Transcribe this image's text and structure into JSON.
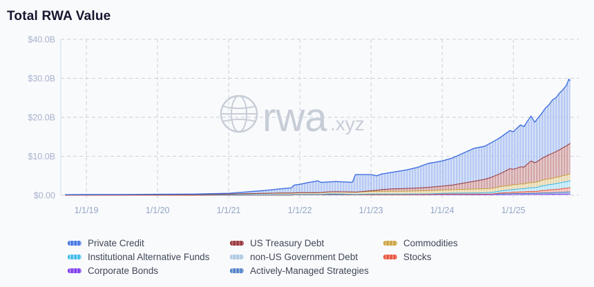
{
  "page": {
    "title": "Total RWA Value"
  },
  "watermark": {
    "brand": "rwa",
    "suffix": ".xyz",
    "icon": "globe-icon",
    "color": "#c7cdd7"
  },
  "chart_data": {
    "type": "area",
    "stacked": true,
    "title": "Total RWA Value",
    "xlabel": "",
    "ylabel": "",
    "grid": "dashed",
    "legend_position": "bottom",
    "xlim": [
      2018.64,
      2025.92
    ],
    "ylim": [
      0,
      40
    ],
    "y_ticks": [
      {
        "v": 0,
        "label": "$0.00"
      },
      {
        "v": 10,
        "label": "$10.0B"
      },
      {
        "v": 20,
        "label": "$20.0B"
      },
      {
        "v": 30,
        "label": "$30.0B"
      },
      {
        "v": 40,
        "label": "$40.0B"
      }
    ],
    "x_ticks": [
      {
        "t": 2019,
        "label": "1/1/19"
      },
      {
        "t": 2020,
        "label": "1/1/20"
      },
      {
        "t": 2021,
        "label": "1/1/21"
      },
      {
        "t": 2022,
        "label": "1/1/22"
      },
      {
        "t": 2023,
        "label": "1/1/23"
      },
      {
        "t": 2024,
        "label": "1/1/24"
      },
      {
        "t": 2025,
        "label": "1/1/25"
      }
    ],
    "x": [
      2018.7,
      2019.0,
      2019.5,
      2020.0,
      2020.5,
      2021.0,
      2021.25,
      2021.5,
      2021.75,
      2021.88,
      2021.92,
      2022.0,
      2022.1,
      2022.2,
      2022.25,
      2022.3,
      2022.4,
      2022.5,
      2022.6,
      2022.7,
      2022.74,
      2022.78,
      2023.0,
      2023.08,
      2023.15,
      2023.3,
      2023.5,
      2023.65,
      2023.8,
      2024.0,
      2024.15,
      2024.3,
      2024.45,
      2024.6,
      2024.7,
      2024.8,
      2024.9,
      2024.95,
      2025.0,
      2025.05,
      2025.1,
      2025.15,
      2025.2,
      2025.25,
      2025.3,
      2025.35,
      2025.4,
      2025.45,
      2025.5,
      2025.55,
      2025.6,
      2025.65,
      2025.7,
      2025.75,
      2025.78,
      2025.8
    ],
    "value_unit": "USD billions",
    "series": [
      {
        "name": "Corporate Bonds",
        "stroke": "#7c3aed",
        "fill": "#a97df2",
        "values": [
          0,
          0,
          0,
          0,
          0,
          0.05,
          0.05,
          0.05,
          0.06,
          0.06,
          0.08,
          0.1,
          0.1,
          0.1,
          0.1,
          0.1,
          0.1,
          0.1,
          0.1,
          0.1,
          0.1,
          0.1,
          0.1,
          0.1,
          0.1,
          0.1,
          0.1,
          0.12,
          0.12,
          0.15,
          0.15,
          0.15,
          0.15,
          0.15,
          0.16,
          0.18,
          0.2,
          0.2,
          0.22,
          0.22,
          0.22,
          0.22,
          0.24,
          0.24,
          0.24,
          0.25,
          0.25,
          0.25,
          0.26,
          0.26,
          0.28,
          0.28,
          0.28,
          0.3,
          0.3,
          0.3
        ]
      },
      {
        "name": "non-US Government Debt",
        "stroke": "#aac6de",
        "fill": "#cadded",
        "values": [
          0,
          0,
          0,
          0,
          0,
          0,
          0,
          0,
          0,
          0,
          0,
          0,
          0,
          0,
          0,
          0,
          0,
          0,
          0,
          0,
          0,
          0,
          0.05,
          0.05,
          0.05,
          0.05,
          0.05,
          0.06,
          0.06,
          0.08,
          0.08,
          0.08,
          0.09,
          0.09,
          0.1,
          0.1,
          0.1,
          0.11,
          0.12,
          0.12,
          0.13,
          0.13,
          0.14,
          0.14,
          0.14,
          0.15,
          0.15,
          0.16,
          0.17,
          0.18,
          0.19,
          0.2,
          0.22,
          0.23,
          0.24,
          0.25
        ]
      },
      {
        "name": "Actively-Managed Strategies",
        "stroke": "#4a7cc7",
        "fill": "#8fb0da",
        "values": [
          0,
          0,
          0,
          0,
          0,
          0,
          0,
          0,
          0,
          0,
          0,
          0,
          0,
          0,
          0,
          0,
          0,
          0,
          0,
          0,
          0,
          0,
          0,
          0,
          0,
          0,
          0,
          0,
          0,
          0.05,
          0.05,
          0.05,
          0.05,
          0.05,
          0.06,
          0.06,
          0.07,
          0.08,
          0.1,
          0.1,
          0.11,
          0.11,
          0.12,
          0.13,
          0.13,
          0.14,
          0.2,
          0.2,
          0.21,
          0.22,
          0.24,
          0.25,
          0.26,
          0.28,
          0.29,
          0.3
        ]
      },
      {
        "name": "Stocks",
        "stroke": "#e84f38",
        "fill": "#f08a77",
        "values": [
          0,
          0,
          0,
          0,
          0,
          0,
          0,
          0,
          0,
          0,
          0,
          0,
          0,
          0,
          0,
          0,
          0.15,
          0.15,
          0.1,
          0.05,
          0.05,
          0,
          0,
          0,
          0,
          0,
          0,
          0,
          0,
          0,
          0,
          0,
          0,
          0,
          0,
          0.2,
          0.3,
          0.3,
          0.35,
          0.35,
          0.4,
          0.4,
          0.45,
          0.45,
          0.45,
          0.5,
          0.6,
          0.65,
          0.7,
          0.75,
          0.8,
          0.85,
          0.95,
          1.0,
          1.05,
          1.1
        ]
      },
      {
        "name": "Institutional Alternative Funds",
        "stroke": "#38b8e8",
        "fill": "#8fd8f4",
        "values": [
          0.08,
          0.08,
          0.08,
          0.08,
          0.08,
          0.1,
          0.1,
          0.1,
          0.1,
          0.1,
          0.1,
          0.1,
          0.1,
          0.1,
          0.1,
          0.1,
          0.1,
          0.1,
          0.1,
          0.1,
          0.1,
          0.1,
          0.15,
          0.15,
          0.15,
          0.15,
          0.15,
          0.15,
          0.18,
          0.2,
          0.25,
          0.28,
          0.3,
          0.35,
          0.4,
          0.5,
          0.6,
          0.65,
          0.7,
          0.75,
          0.8,
          0.8,
          0.9,
          0.95,
          1.0,
          1.05,
          1.2,
          1.25,
          1.35,
          1.4,
          1.5,
          1.55,
          1.65,
          1.7,
          1.75,
          1.8
        ]
      },
      {
        "name": "Commodities",
        "stroke": "#c79f3e",
        "fill": "#ddc078",
        "values": [
          0,
          0.02,
          0.03,
          0.05,
          0.07,
          0.15,
          0.25,
          0.35,
          0.4,
          0.42,
          0.43,
          0.45,
          0.45,
          0.47,
          0.48,
          0.5,
          0.52,
          0.55,
          0.58,
          0.6,
          0.6,
          0.6,
          0.7,
          0.7,
          0.7,
          0.72,
          0.75,
          0.78,
          0.8,
          0.85,
          0.9,
          0.95,
          1.0,
          1.05,
          1.05,
          1.1,
          1.15,
          1.15,
          1.2,
          1.2,
          1.25,
          1.25,
          1.3,
          1.3,
          1.35,
          1.4,
          1.45,
          1.5,
          1.5,
          1.55,
          1.6,
          1.62,
          1.68,
          1.7,
          1.75,
          1.8
        ]
      },
      {
        "name": "US Treasury Debt",
        "stroke": "#93353c",
        "fill": "#b86a6d",
        "values": [
          0,
          0,
          0,
          0,
          0,
          0,
          0,
          0,
          0,
          0,
          0,
          0,
          0,
          0,
          0,
          0,
          0,
          0,
          0,
          0,
          0,
          0,
          0.15,
          0.3,
          0.45,
          0.6,
          0.7,
          0.75,
          0.85,
          1.0,
          1.2,
          1.6,
          2.0,
          2.4,
          2.9,
          3.3,
          3.9,
          4.3,
          4.0,
          4.2,
          4.4,
          4.3,
          4.9,
          5.6,
          5.0,
          5.3,
          5.6,
          5.9,
          6.2,
          6.4,
          6.6,
          6.9,
          7.2,
          7.5,
          7.7,
          7.8
        ]
      },
      {
        "name": "Private Credit",
        "stroke": "#3e6fe0",
        "fill": "#88a8ee",
        "values": [
          0.07,
          0.08,
          0.09,
          0.12,
          0.15,
          0.2,
          0.45,
          0.7,
          1.14,
          1.32,
          1.99,
          2.15,
          2.55,
          2.83,
          3.02,
          2.6,
          2.55,
          2.6,
          2.55,
          2.5,
          2.5,
          4.5,
          4.15,
          3.7,
          4.0,
          4.28,
          4.75,
          5.28,
          6.13,
          6.47,
          6.97,
          7.72,
          8.47,
          8.47,
          8.92,
          9.16,
          9.6,
          9.8,
          9.61,
          10.25,
          10.7,
          10.4,
          11.0,
          11.5,
          10.4,
          11.1,
          11.55,
          12.4,
          12.8,
          13.7,
          13.8,
          14.6,
          14.9,
          15.6,
          16.7,
          16.05
        ]
      }
    ],
    "legend": {
      "items": [
        "Private Credit",
        "US Treasury Debt",
        "Commodities",
        "Institutional Alternative Funds",
        "non-US Government Debt",
        "Stocks",
        "Corporate Bonds",
        "Actively-Managed Strategies"
      ]
    },
    "colors": {
      "axis_label_y": "#a8b2cd",
      "axis_label_x": "#93a5c6",
      "gridline": "#cccfd6",
      "plot_left_border": "#d6eaf3",
      "legend_text": "#3f4757",
      "title_text": "#14162f",
      "watermark": "#c7cdd7"
    }
  }
}
